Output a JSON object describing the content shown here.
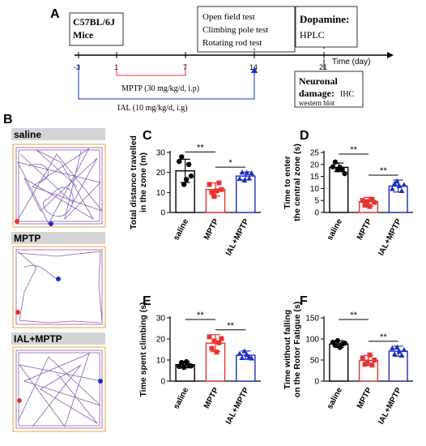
{
  "panel_labels": {
    "A": "A",
    "B": "B",
    "C": "C",
    "D": "D",
    "E": "E",
    "F": "F"
  },
  "timeline": {
    "mice_box": [
      "C57BL/6J",
      "Mice"
    ],
    "tests_box": [
      "Open field test",
      "Climbing pole test",
      "Rotating rod test"
    ],
    "dopamine_box": {
      "title": "Dopamine:",
      "method": "HPLC"
    },
    "neuronal_box": {
      "title": "Neuronal",
      "title2": "damage:",
      "method1": "IHC",
      "method2": "western blot"
    },
    "ticks": [
      "-3",
      "1",
      "7",
      "14",
      "21"
    ],
    "axis_label": "Time (day)",
    "mptp_label": "MPTP (30 mg/kg/d, i.p)",
    "ial_label": "IAL (10 mg/kg/d, i.g)"
  },
  "tracks": [
    "saline",
    "MPTP",
    "IAL+MPTP"
  ],
  "colors": {
    "saline": "#000000",
    "mptp": "#e8332f",
    "ial": "#1c2fbf",
    "track": "#7a4fa8",
    "orange": "#f3b15a"
  },
  "chart_data": [
    {
      "panel": "C",
      "type": "bar",
      "categories": [
        "saline",
        "MPTP",
        "IAL+MPTP"
      ],
      "values": [
        20.8,
        11.5,
        18.2
      ],
      "errors": [
        5.8,
        3.3,
        2.0
      ],
      "points": [
        [
          25.5,
          27.8,
          14.0,
          16.5,
          24.0,
          18.2
        ],
        [
          14.0,
          10.0,
          8.0,
          10.8,
          14.8,
          11.5
        ],
        [
          16.8,
          20.0,
          16.0,
          19.8,
          17.0,
          19.6
        ]
      ],
      "ylabel": [
        "Total distance travelled",
        "in the zone (m)"
      ],
      "ylim": [
        0,
        30
      ],
      "yticks": [
        0,
        10,
        20,
        30
      ],
      "sig": [
        {
          "from": 0,
          "to": 1,
          "label": "**"
        },
        {
          "from": 1,
          "to": 2,
          "label": "*"
        }
      ]
    },
    {
      "panel": "D",
      "type": "bar",
      "categories": [
        "saline",
        "MPTP",
        "IAL+MPTP"
      ],
      "values": [
        18.8,
        4.5,
        11.0
      ],
      "errors": [
        1.8,
        1.8,
        2.5
      ],
      "points": [
        [
          19.0,
          21.0,
          17.8,
          18.8,
          18.0,
          16.2
        ],
        [
          5.0,
          3.0,
          4.5,
          2.5,
          5.5,
          4.2
        ],
        [
          9.8,
          12.0,
          13.0,
          11.0,
          9.0,
          11.5
        ]
      ],
      "ylabel": [
        "Time to enter",
        "the central zone (s)"
      ],
      "ylim": [
        0,
        25
      ],
      "yticks": [
        0,
        5,
        10,
        15,
        20,
        25
      ],
      "sig": [
        {
          "from": 0,
          "to": 1,
          "label": "**"
        },
        {
          "from": 1,
          "to": 2,
          "label": "**"
        }
      ]
    },
    {
      "panel": "E",
      "type": "bar",
      "categories": [
        "saline",
        "MPTP",
        "IAL+MPTP"
      ],
      "values": [
        7.8,
        18.0,
        12.3
      ],
      "errors": [
        1.5,
        4.0,
        2.0
      ],
      "points": [
        [
          7.0,
          8.8,
          6.5,
          9.2,
          7.5,
          7.2
        ],
        [
          21.0,
          15.5,
          19.0,
          13.8,
          18.2,
          20.2
        ],
        [
          13.0,
          11.0,
          14.2,
          12.5,
          11.5,
          10.8
        ]
      ],
      "ylabel": [
        "Time spent climbing (s)"
      ],
      "ylim": [
        0,
        30
      ],
      "yticks": [
        0,
        10,
        20,
        30
      ],
      "sig": [
        {
          "from": 0,
          "to": 1,
          "label": "**"
        },
        {
          "from": 1,
          "to": 2,
          "label": "**"
        }
      ]
    },
    {
      "panel": "F",
      "type": "bar",
      "categories": [
        "saline",
        "MPTP",
        "IAL+MPTP"
      ],
      "values": [
        88,
        49,
        71
      ],
      "errors": [
        8,
        12,
        12
      ],
      "points": [
        [
          92,
          85,
          96,
          80,
          88,
          90
        ],
        [
          55,
          40,
          45,
          62,
          38,
          50
        ],
        [
          78,
          64,
          80,
          70,
          61,
          74
        ]
      ],
      "ylabel": [
        "Time without falling",
        "on the Rotor Fatigue (s)"
      ],
      "ylim": [
        0,
        150
      ],
      "yticks": [
        0,
        50,
        100,
        150
      ],
      "sig": [
        {
          "from": 0,
          "to": 1,
          "label": "**"
        },
        {
          "from": 1,
          "to": 2,
          "label": "**"
        }
      ]
    }
  ]
}
